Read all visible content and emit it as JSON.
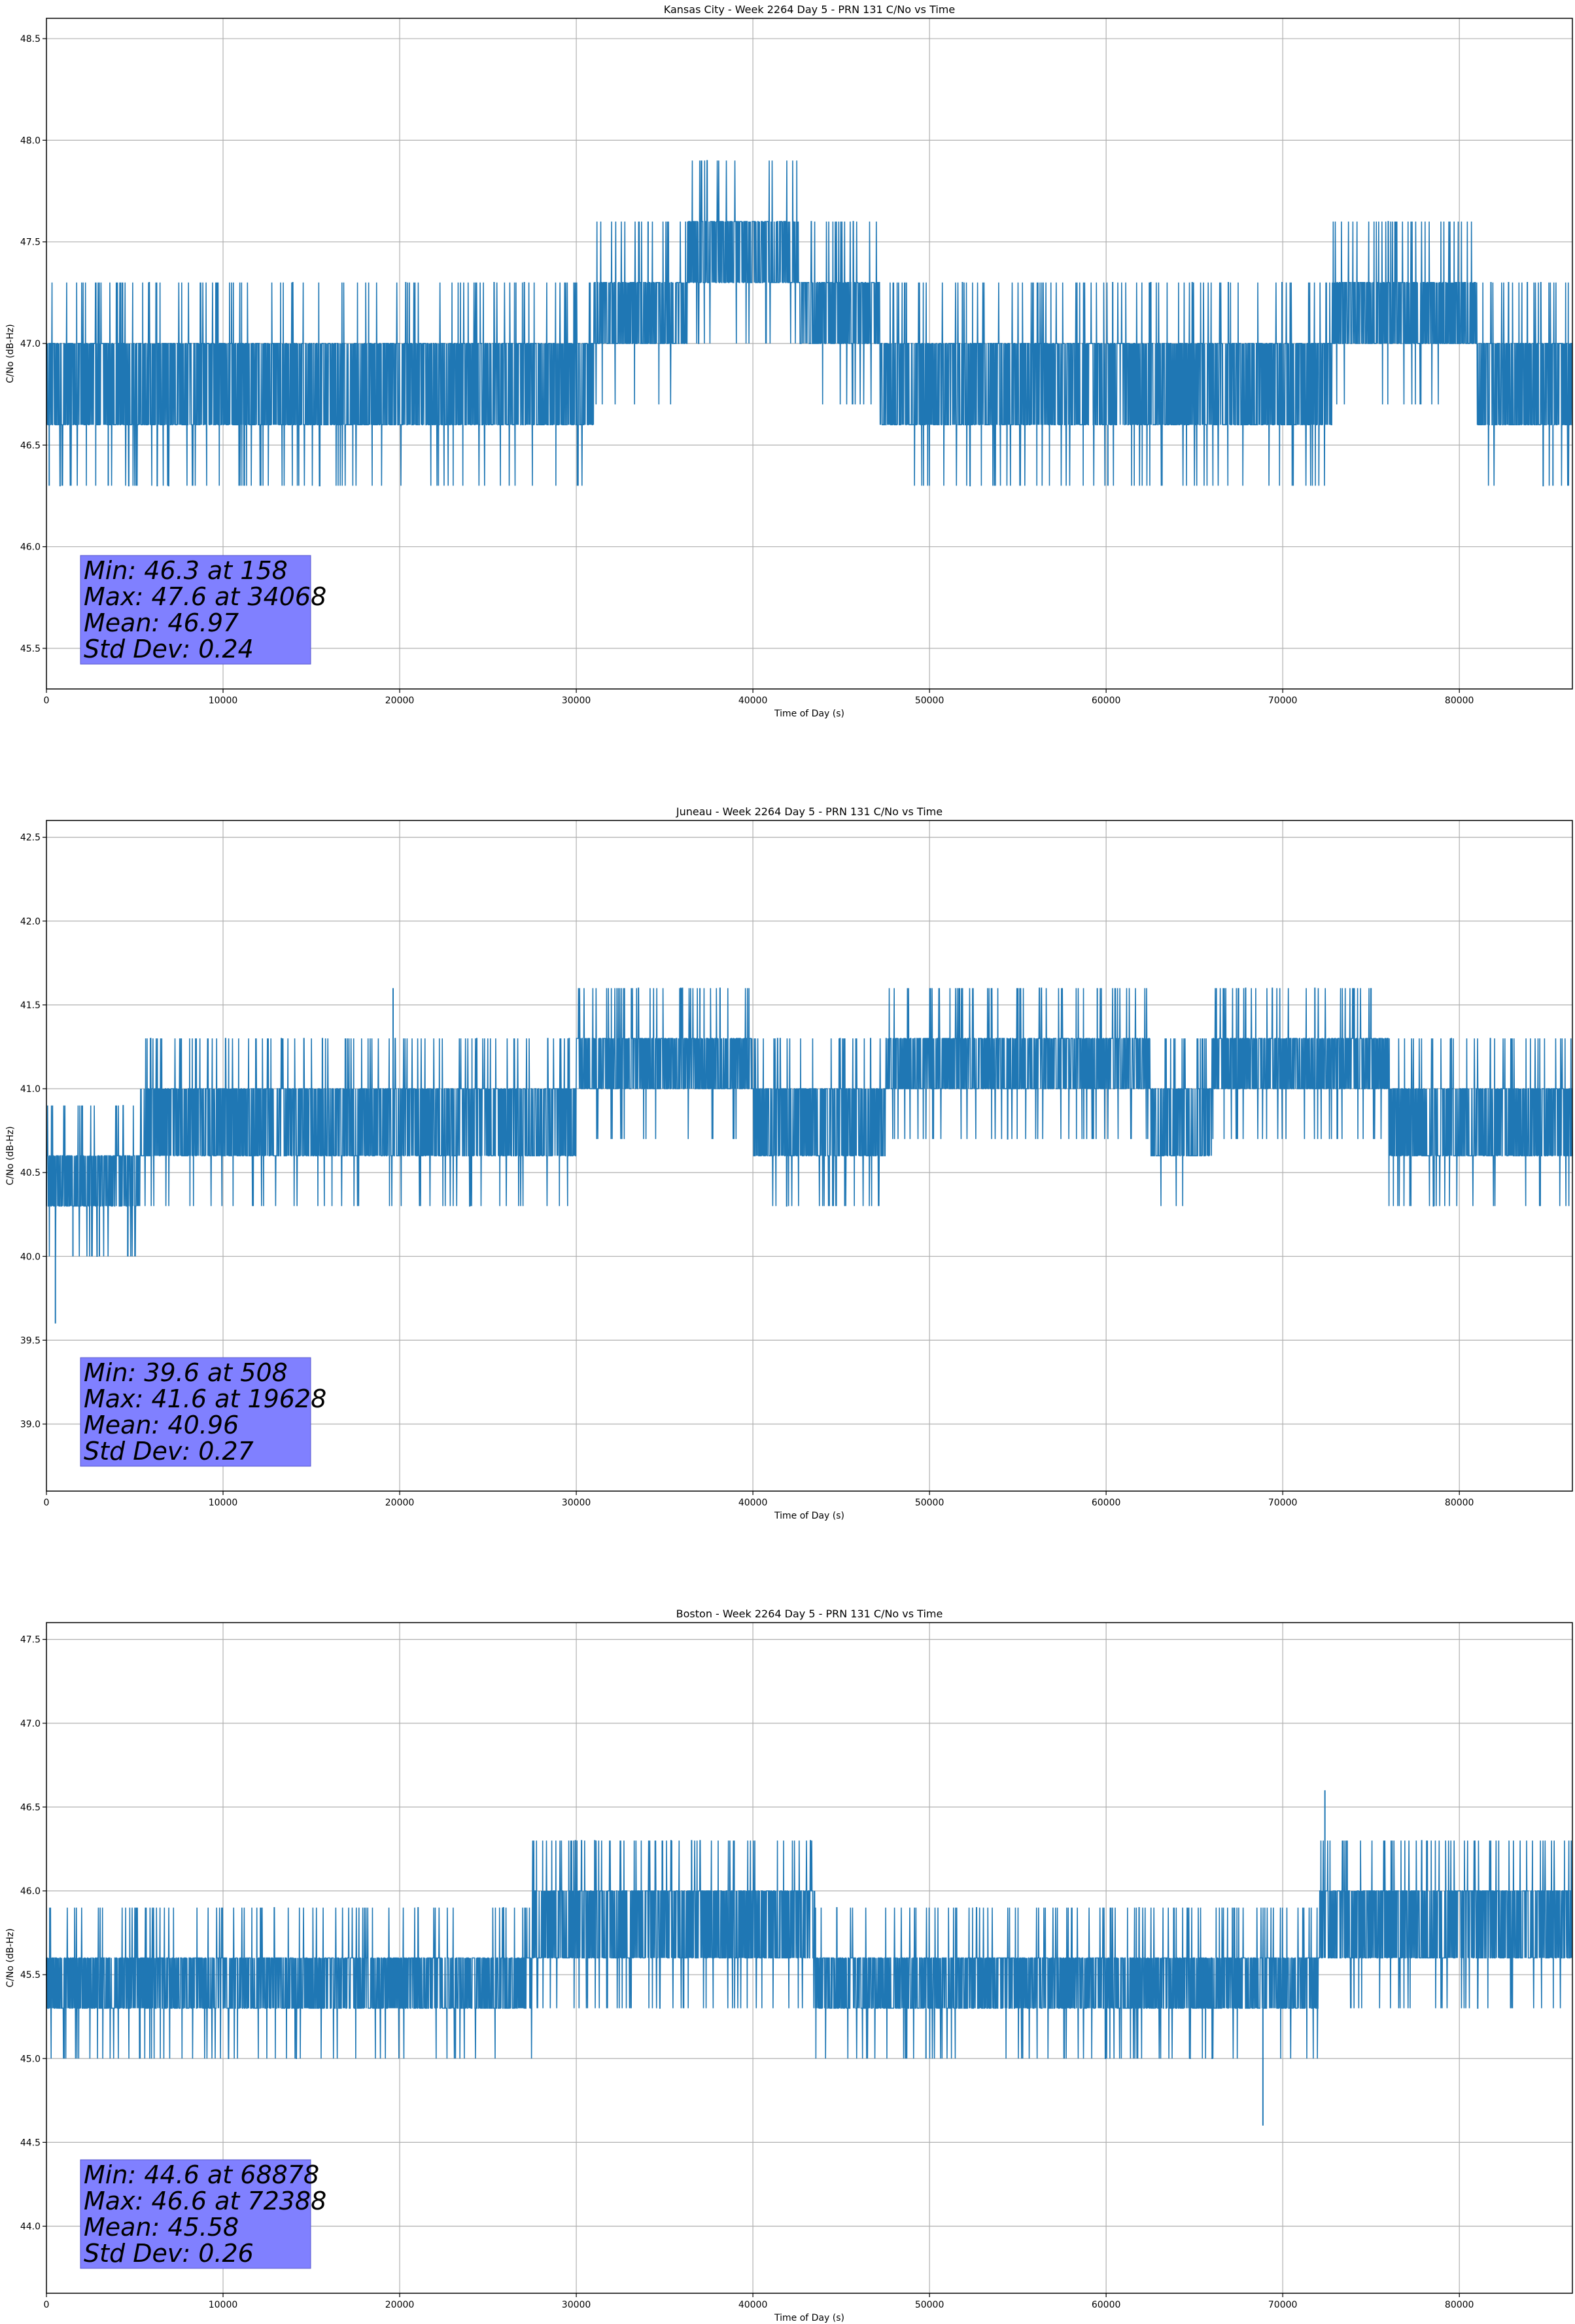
{
  "chart_data": [
    {
      "type": "line",
      "title": "Kansas City - Week 2264 Day 5 - PRN 131 C/No vs Time",
      "xlabel": "Time of Day (s)",
      "ylabel": "C/No (dB-Hz)",
      "xlim": [
        0,
        86400
      ],
      "ylim": [
        45.3,
        48.6
      ],
      "grid": true,
      "xticks": [
        0,
        10000,
        20000,
        30000,
        40000,
        50000,
        60000,
        70000,
        80000
      ],
      "yticks": [
        45.5,
        46.0,
        46.5,
        47.0,
        47.5,
        48.0,
        48.5
      ],
      "series_color": "#1f77b4",
      "base_levels": [
        {
          "x0": 0,
          "x1": 17000,
          "low": 46.6,
          "high": 47.0
        },
        {
          "x0": 17000,
          "x1": 31000,
          "low": 46.6,
          "high": 47.0
        },
        {
          "x0": 31000,
          "x1": 36300,
          "low": 47.0,
          "high": 47.3
        },
        {
          "x0": 36300,
          "x1": 42600,
          "low": 47.3,
          "high": 47.6
        },
        {
          "x0": 42600,
          "x1": 47200,
          "low": 47.0,
          "high": 47.3
        },
        {
          "x0": 47200,
          "x1": 72800,
          "low": 46.6,
          "high": 47.0
        },
        {
          "x0": 72800,
          "x1": 81000,
          "low": 47.0,
          "high": 47.3
        },
        {
          "x0": 81000,
          "x1": 86400,
          "low": 46.6,
          "high": 47.0
        }
      ],
      "step": 0.3,
      "stats": {
        "min_line": "Min: 46.3 at 158",
        "max_line": "Max: 47.6 at 34068",
        "mean_line": "Mean: 46.97",
        "std_line": "Std Dev: 0.24"
      },
      "spikes": [
        {
          "x": 158,
          "y": 46.3
        },
        {
          "x": 3500,
          "y": 46.3
        },
        {
          "x": 60100,
          "y": 46.3
        },
        {
          "x": 85300,
          "y": 46.3
        },
        {
          "x": 34068,
          "y": 47.6
        }
      ]
    },
    {
      "type": "line",
      "title": "Juneau - Week 2264 Day 5 - PRN 131 C/No vs Time",
      "xlabel": "Time of Day (s)",
      "ylabel": "C/No (dB-Hz)",
      "xlim": [
        0,
        86400
      ],
      "ylim": [
        38.6,
        42.6
      ],
      "grid": true,
      "xticks": [
        0,
        10000,
        20000,
        30000,
        40000,
        50000,
        60000,
        70000,
        80000
      ],
      "yticks": [
        39.0,
        39.5,
        40.0,
        40.5,
        41.0,
        41.5,
        42.0,
        42.5
      ],
      "series_color": "#1f77b4",
      "base_levels": [
        {
          "x0": 0,
          "x1": 5300,
          "low": 40.3,
          "high": 40.6
        },
        {
          "x0": 5300,
          "x1": 24000,
          "low": 40.6,
          "high": 41.0
        },
        {
          "x0": 24000,
          "x1": 30000,
          "low": 40.6,
          "high": 41.0
        },
        {
          "x0": 30000,
          "x1": 40000,
          "low": 41.0,
          "high": 41.3
        },
        {
          "x0": 40000,
          "x1": 47500,
          "low": 40.6,
          "high": 41.0
        },
        {
          "x0": 47500,
          "x1": 62500,
          "low": 41.0,
          "high": 41.3
        },
        {
          "x0": 62500,
          "x1": 66000,
          "low": 40.6,
          "high": 41.0
        },
        {
          "x0": 66000,
          "x1": 76000,
          "low": 41.0,
          "high": 41.3
        },
        {
          "x0": 76000,
          "x1": 86400,
          "low": 40.6,
          "high": 41.0
        }
      ],
      "step": 0.3,
      "stats": {
        "min_line": "Min: 39.6 at 508",
        "max_line": "Max: 41.6 at 19628",
        "mean_line": "Mean: 40.96",
        "std_line": "Std Dev: 0.27"
      },
      "spikes": [
        {
          "x": 508,
          "y": 39.6
        },
        {
          "x": 1500,
          "y": 40.0
        },
        {
          "x": 3000,
          "y": 40.0
        },
        {
          "x": 4600,
          "y": 40.0
        },
        {
          "x": 19628,
          "y": 41.6
        },
        {
          "x": 37000,
          "y": 41.6
        },
        {
          "x": 53500,
          "y": 41.6
        },
        {
          "x": 59500,
          "y": 41.6
        },
        {
          "x": 67500,
          "y": 41.6
        },
        {
          "x": 75000,
          "y": 41.6
        }
      ]
    },
    {
      "type": "line",
      "title": "Boston - Week 2264 Day 5 - PRN 131 C/No vs Time",
      "xlabel": "Time of Day (s)",
      "ylabel": "C/No (dB-Hz)",
      "xlim": [
        0,
        86400
      ],
      "ylim": [
        43.6,
        47.6
      ],
      "grid": true,
      "xticks": [
        0,
        10000,
        20000,
        30000,
        40000,
        50000,
        60000,
        70000,
        80000
      ],
      "yticks": [
        44.0,
        44.5,
        45.0,
        45.5,
        46.0,
        46.5,
        47.0,
        47.5
      ],
      "series_color": "#1f77b4",
      "base_levels": [
        {
          "x0": 0,
          "x1": 4500,
          "low": 45.3,
          "high": 45.6
        },
        {
          "x0": 4500,
          "x1": 16000,
          "low": 45.3,
          "high": 45.6
        },
        {
          "x0": 16000,
          "x1": 27500,
          "low": 45.3,
          "high": 45.6
        },
        {
          "x0": 27500,
          "x1": 43500,
          "low": 45.6,
          "high": 46.0
        },
        {
          "x0": 43500,
          "x1": 72000,
          "low": 45.3,
          "high": 45.6
        },
        {
          "x0": 72000,
          "x1": 86400,
          "low": 45.6,
          "high": 46.0
        }
      ],
      "step": 0.3,
      "stats": {
        "min_line": "Min: 44.6 at 68878",
        "max_line": "Max: 46.6 at 72388",
        "mean_line": "Mean: 45.58",
        "std_line": "Std Dev: 0.26"
      },
      "spikes": [
        {
          "x": 68878,
          "y": 44.6
        },
        {
          "x": 72388,
          "y": 46.6
        },
        {
          "x": 5300,
          "y": 45.0
        },
        {
          "x": 49800,
          "y": 45.0
        }
      ]
    }
  ],
  "colors": {
    "series": "#1f77b4",
    "stats_box": "#8080ff",
    "grid": "#b0b0b0"
  }
}
